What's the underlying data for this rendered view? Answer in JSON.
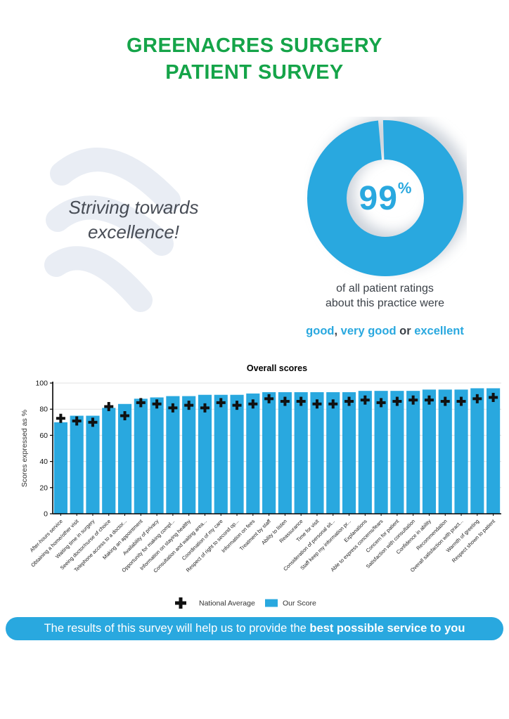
{
  "colors": {
    "green": "#15A449",
    "blue": "#29A8DF",
    "dark": "#3B4149",
    "swoosh": "#E9EDF4",
    "grid": "#E0E0E0",
    "marker": "#111111"
  },
  "header": {
    "title_line1": "GREENACRES SURGERY",
    "title_line2": "PATIENT SURVEY"
  },
  "hero": {
    "tagline_line1": "Striving towards",
    "tagline_line2": "excellence!",
    "donut": {
      "percent": 99,
      "percent_value": "99",
      "percent_sign": "%"
    },
    "caption_line1": "of all patient ratings",
    "caption_line2": "about this practice were",
    "ratings": {
      "good": "good",
      "comma": ", ",
      "very_good": "very good",
      "or": "  or  ",
      "excellent": "excellent"
    }
  },
  "chart_data": {
    "type": "bar",
    "title": "Overall scores",
    "xlabel": "",
    "ylabel": "Scores expressed as %",
    "ylim": [
      0,
      100
    ],
    "yticks": [
      0,
      20,
      40,
      60,
      80,
      100
    ],
    "grid": true,
    "legend_position": "bottom",
    "categories": [
      "After-hours service",
      "Obtaining a home/other visit",
      "Waiting time in surgery",
      "Seeing doctor/nurse of choice",
      "Telephone access to a doctor...",
      "Making an appointment",
      "Availability of privacy",
      "Opportunity for making compl...",
      "Information on staying healthy",
      "Consultation and waiting area...",
      "Coordination of my care",
      "Respect of right to second op...",
      "Information on fees",
      "Treatment by staff",
      "Ability to listen",
      "Reassurance",
      "Time for visit",
      "Consideration of personal sit...",
      "Staff keep my information pr...",
      "Explanations",
      "Able to express concerns/fears",
      "Concern for patient",
      "Satisfaction with consultation",
      "Confidence in ability",
      "Recommendation",
      "Overall satisfaction with pract...",
      "Warmth of greeting",
      "Respect shown to patient"
    ],
    "series": [
      {
        "name": "Our Score",
        "style": "bar",
        "color": "#29A8DF",
        "values": [
          70,
          75,
          75,
          81,
          84,
          88,
          89,
          90,
          90,
          91,
          91,
          91,
          92,
          93,
          93,
          93,
          93,
          93,
          93,
          94,
          94,
          94,
          94,
          95,
          95,
          95,
          96,
          96
        ]
      },
      {
        "name": "National Average",
        "style": "plus-marker",
        "color": "#111111",
        "values": [
          73,
          71,
          70,
          82,
          75,
          85,
          84,
          81,
          83,
          81,
          85,
          83,
          84,
          88,
          86,
          86,
          84,
          84,
          86,
          87,
          85,
          86,
          87,
          87,
          86,
          86,
          88,
          89
        ]
      }
    ]
  },
  "footer": {
    "text_normal": "The results of this survey will help us to provide the ",
    "text_bold": "best possible service to you"
  }
}
